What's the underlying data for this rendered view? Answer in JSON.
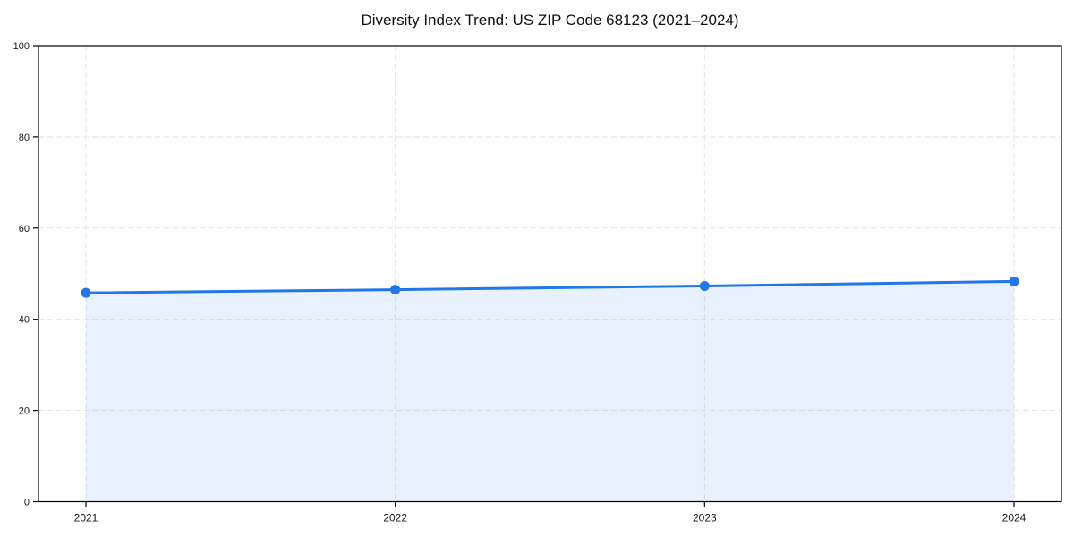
{
  "chart_data": {
    "type": "area",
    "title": "Diversity Index Trend: US ZIP Code 68123 (2021–2024)",
    "x": [
      "2021",
      "2022",
      "2023",
      "2024"
    ],
    "series": [
      {
        "name": "Diversity Index",
        "values": [
          45.8,
          46.5,
          47.3,
          48.3
        ]
      }
    ],
    "xlabel": "",
    "ylabel": "",
    "ylim": [
      0,
      100
    ],
    "yticks": [
      0,
      20,
      40,
      60,
      80,
      100
    ],
    "grid": "dashed-both",
    "legend": "none",
    "colors": {
      "line": "#2176e8",
      "marker": "#2176e8",
      "area": "#2176e8",
      "area_opacity": 0.1,
      "grid": "#e4e4e4",
      "spine": "#000000",
      "tick_text": "#1a1a1a",
      "background": "#ffffff"
    }
  }
}
